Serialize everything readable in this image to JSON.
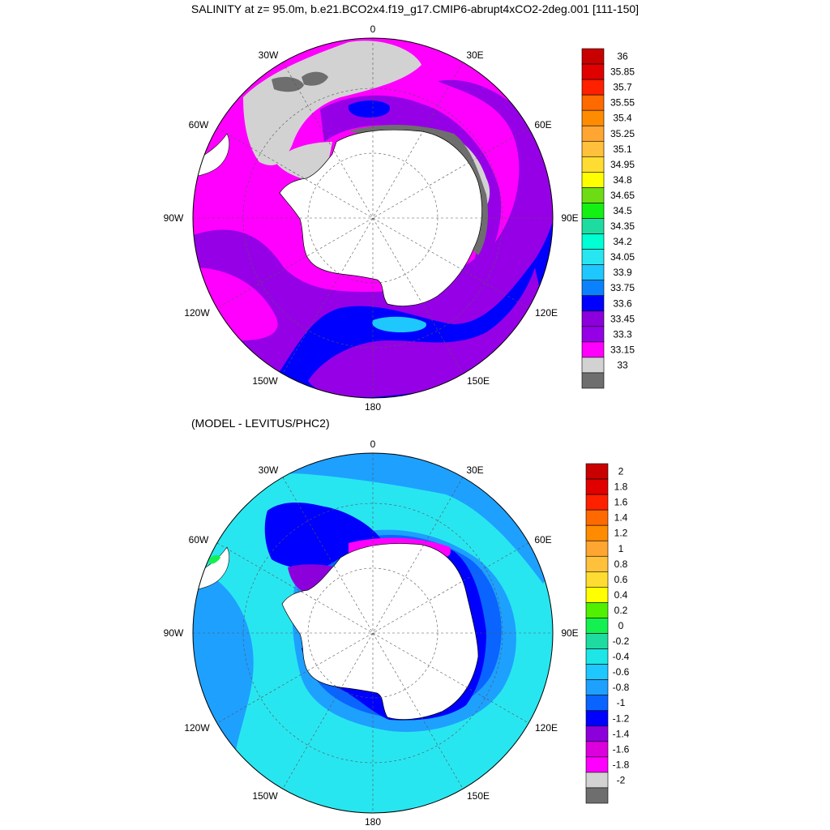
{
  "title": "SALINITY at z=  95.0m, b.e21.BCO2x4.f19_g17.CMIP6-abrupt4xCO2-2deg.001 [111-150]",
  "diff_title": "(MODEL - LEVITUS/PHC2)",
  "lon_labels": {
    "l0": "0",
    "l30e": "30E",
    "l60e": "60E",
    "l90e": "90E",
    "l120e": "120E",
    "l150e": "150E",
    "l180": "180",
    "l150w": "150W",
    "l120w": "120W",
    "l90w": "90W",
    "l60w": "60W",
    "l30w": "30W"
  },
  "colorbar_top": {
    "labels": [
      "36",
      "35.85",
      "35.7",
      "35.55",
      "35.4",
      "35.25",
      "35.1",
      "34.95",
      "34.8",
      "34.65",
      "34.5",
      "34.35",
      "34.2",
      "34.05",
      "33.9",
      "33.75",
      "33.6",
      "33.45",
      "33.3",
      "33.15",
      "33"
    ],
    "colors": [
      "#c80000",
      "#e10000",
      "#ff2000",
      "#ff6a00",
      "#ff8c00",
      "#ffa532",
      "#ffc03c",
      "#ffdc32",
      "#ffff00",
      "#6edc14",
      "#14f014",
      "#1edca0",
      "#00ffd2",
      "#28e6f0",
      "#1ec8ff",
      "#0a82ff",
      "#0000ff",
      "#8c00dc",
      "#9600e6",
      "#ff00ff",
      "#d2d2d2",
      "#6e6e6e"
    ]
  },
  "colorbar_bottom": {
    "labels": [
      "2",
      "1.8",
      "1.6",
      "1.4",
      "1.2",
      "1",
      "0.8",
      "0.6",
      "0.4",
      "0.2",
      "0",
      "-0.2",
      "-0.4",
      "-0.6",
      "-0.8",
      "-1",
      "-1.2",
      "-1.4",
      "-1.6",
      "-1.8",
      "-2"
    ],
    "colors": [
      "#c80000",
      "#e10000",
      "#ff2000",
      "#ff6a00",
      "#ff8c00",
      "#ffa532",
      "#ffc03c",
      "#ffdc32",
      "#ffff00",
      "#50f000",
      "#14f050",
      "#1edca0",
      "#1ee6e6",
      "#1ec8ff",
      "#1ea0ff",
      "#0a64ff",
      "#0000ff",
      "#8c00dc",
      "#dc00dc",
      "#ff00ff",
      "#d2d2d2",
      "#6e6e6e"
    ]
  },
  "colors": {
    "top_ocean": "#ff00ff",
    "top_band_purple": "#9600e6",
    "top_band_blue": "#0000ff",
    "top_band_light": "#1ec8ff",
    "top_ice": "#d2d2d2",
    "top_dark": "#6e6e6e",
    "bot_ocean": "#28e6f0",
    "bot_band_mid": "#1ea0ff",
    "bot_band_dark": "#0a64ff",
    "bot_band_blue": "#0000ff",
    "bot_band_purple": "#8c00dc",
    "bot_band_magenta": "#ff00ff",
    "land": "#ffffff"
  }
}
